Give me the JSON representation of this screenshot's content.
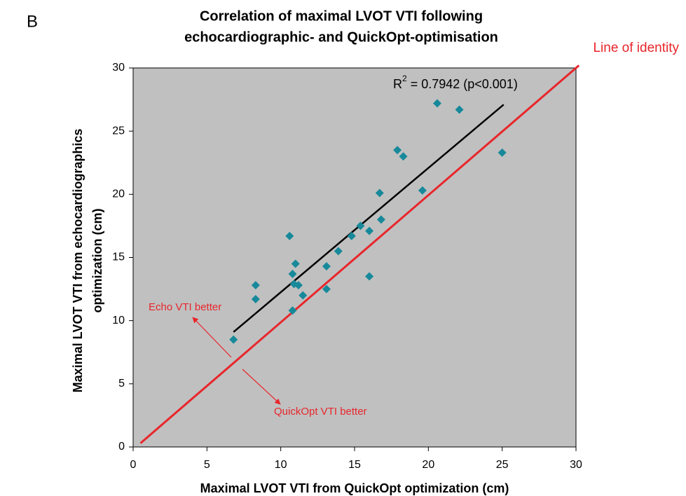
{
  "chart_data": {
    "type": "scatter",
    "panel_label": "B",
    "title": [
      "Correlation of maximal LVOT VTI following",
      "echocardiographic- and QuickOpt-optimisation"
    ],
    "x_label": "Maximal LVOT VTI from QuickOpt optimization (cm)",
    "y_label": [
      "Maximal LVOT VTI from echocardiographics",
      "optimization (cm)"
    ],
    "xlim": [
      0,
      30
    ],
    "ylim": [
      0,
      30
    ],
    "xticks": [
      0,
      5,
      10,
      15,
      20,
      25,
      30
    ],
    "yticks": [
      0,
      5,
      10,
      15,
      20,
      25,
      30
    ],
    "series": [
      {
        "color": "#17899a",
        "x": [
          6.8,
          8.3,
          8.3,
          10.6,
          10.8,
          10.9,
          11.0,
          11.2,
          10.8,
          11.5,
          13.1,
          13.1,
          13.9,
          14.8,
          15.4,
          16.0,
          16.0,
          16.7,
          16.8,
          17.9,
          18.3,
          19.6,
          20.6,
          22.1,
          25.0
        ],
        "values": [
          8.5,
          12.8,
          11.7,
          16.7,
          13.7,
          12.9,
          14.5,
          12.8,
          10.8,
          12.0,
          14.3,
          12.5,
          15.5,
          16.7,
          17.5,
          17.1,
          13.5,
          20.1,
          18.0,
          23.5,
          23.0,
          20.3,
          27.2,
          26.7,
          23.3
        ]
      }
    ],
    "fit_line": {
      "color": "#000000",
      "x": [
        6.8,
        25.1
      ],
      "y": [
        9.1,
        27.1
      ]
    },
    "r2_label": {
      "base": "R",
      "sup": "2",
      "rest": " = 0.7942 (p<0.001)"
    },
    "identity_line": {
      "color": "#e8262b",
      "x": [
        0.5,
        30.2
      ],
      "y": [
        0.3,
        30.2
      ],
      "label": "Line of identity"
    },
    "annotations": [
      "Echo VTI better",
      "QuickOpt VTI better"
    ],
    "plot_background": "#c0c0c0"
  }
}
